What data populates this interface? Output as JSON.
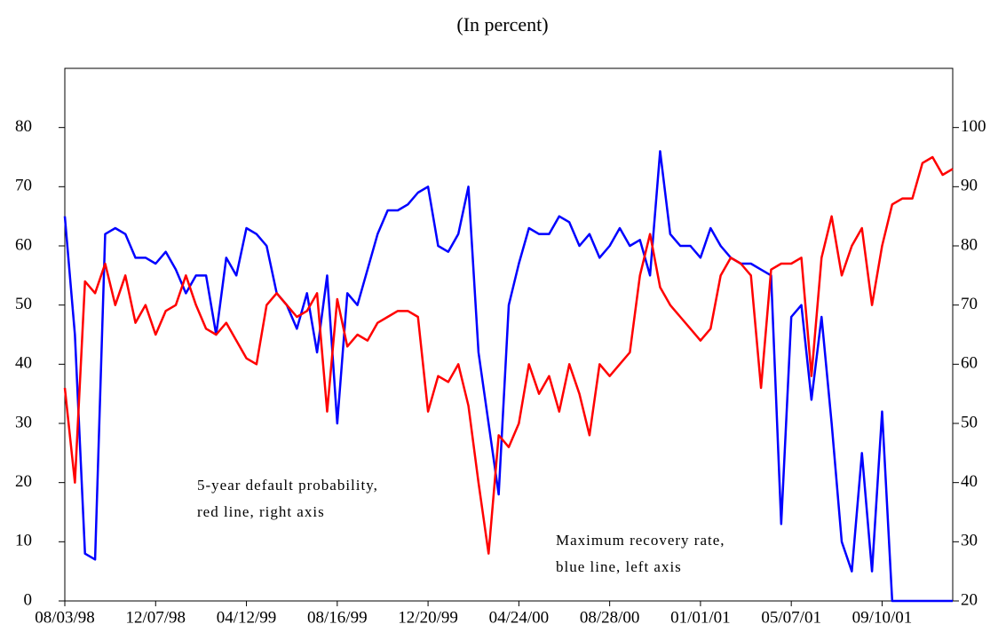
{
  "chart_data": {
    "type": "line",
    "title": "(In percent)",
    "annotations": [
      {
        "lines": [
          "5-year default probability,",
          "red line, right axis"
        ]
      },
      {
        "lines": [
          "Maximum recovery rate,",
          "blue line, left axis"
        ]
      }
    ],
    "categories": [
      "08/03/98",
      null,
      null,
      null,
      null,
      null,
      null,
      null,
      null,
      "12/07/98",
      null,
      null,
      null,
      null,
      null,
      null,
      null,
      null,
      "04/12/99",
      null,
      null,
      null,
      null,
      null,
      null,
      null,
      null,
      "08/16/99",
      null,
      null,
      null,
      null,
      null,
      null,
      null,
      null,
      "12/20/99",
      null,
      null,
      null,
      null,
      null,
      null,
      null,
      null,
      "04/24/00",
      null,
      null,
      null,
      null,
      null,
      null,
      null,
      null,
      "08/28/00",
      null,
      null,
      null,
      null,
      null,
      null,
      null,
      null,
      "01/01/01",
      null,
      null,
      null,
      null,
      null,
      null,
      null,
      null,
      "05/07/01",
      null,
      null,
      null,
      null,
      null,
      null,
      null,
      null,
      "09/10/01",
      null,
      null,
      null,
      null,
      null,
      null,
      null
    ],
    "series": [
      {
        "color": "#0000ff",
        "axis": "y",
        "values": [
          65,
          45,
          8,
          7,
          62,
          63,
          62,
          58,
          58,
          57,
          59,
          56,
          52,
          55,
          55,
          45,
          58,
          55,
          63,
          62,
          60,
          52,
          50,
          46,
          52,
          42,
          55,
          30,
          52,
          50,
          56,
          62,
          66,
          66,
          67,
          69,
          70,
          60,
          59,
          62,
          70,
          42,
          30,
          18,
          50,
          57,
          63,
          62,
          62,
          65,
          64,
          60,
          62,
          58,
          60,
          63,
          60,
          61,
          55,
          76,
          62,
          60,
          60,
          58,
          63,
          60,
          58,
          57,
          57,
          56,
          55,
          13,
          48,
          50,
          34,
          48,
          30,
          10,
          5,
          25,
          5,
          32,
          0,
          0,
          0,
          0,
          0,
          0,
          0
        ]
      },
      {
        "color": "#ff0000",
        "axis": "y2",
        "values": [
          56,
          40,
          74,
          72,
          77,
          70,
          75,
          67,
          70,
          65,
          69,
          70,
          75,
          70,
          66,
          65,
          67,
          64,
          61,
          60,
          70,
          72,
          70,
          68,
          69,
          72,
          52,
          71,
          63,
          65,
          64,
          67,
          68,
          69,
          69,
          68,
          52,
          58,
          57,
          60,
          53,
          40,
          28,
          48,
          46,
          50,
          60,
          55,
          58,
          52,
          60,
          55,
          48,
          60,
          58,
          60,
          62,
          75,
          82,
          73,
          70,
          68,
          66,
          64,
          66,
          75,
          78,
          77,
          75,
          56,
          76,
          77,
          77,
          78,
          58,
          78,
          85,
          75,
          80,
          83,
          70,
          80,
          87,
          88,
          88,
          94,
          95,
          92,
          93
        ]
      }
    ],
    "ylim": [
      0,
      90
    ],
    "yticks": [
      0,
      10,
      20,
      30,
      40,
      50,
      60,
      70,
      80
    ],
    "y2lim": [
      20,
      110
    ],
    "y2ticks": [
      20,
      30,
      40,
      50,
      60,
      70,
      80,
      90,
      100
    ],
    "grid": false
  }
}
